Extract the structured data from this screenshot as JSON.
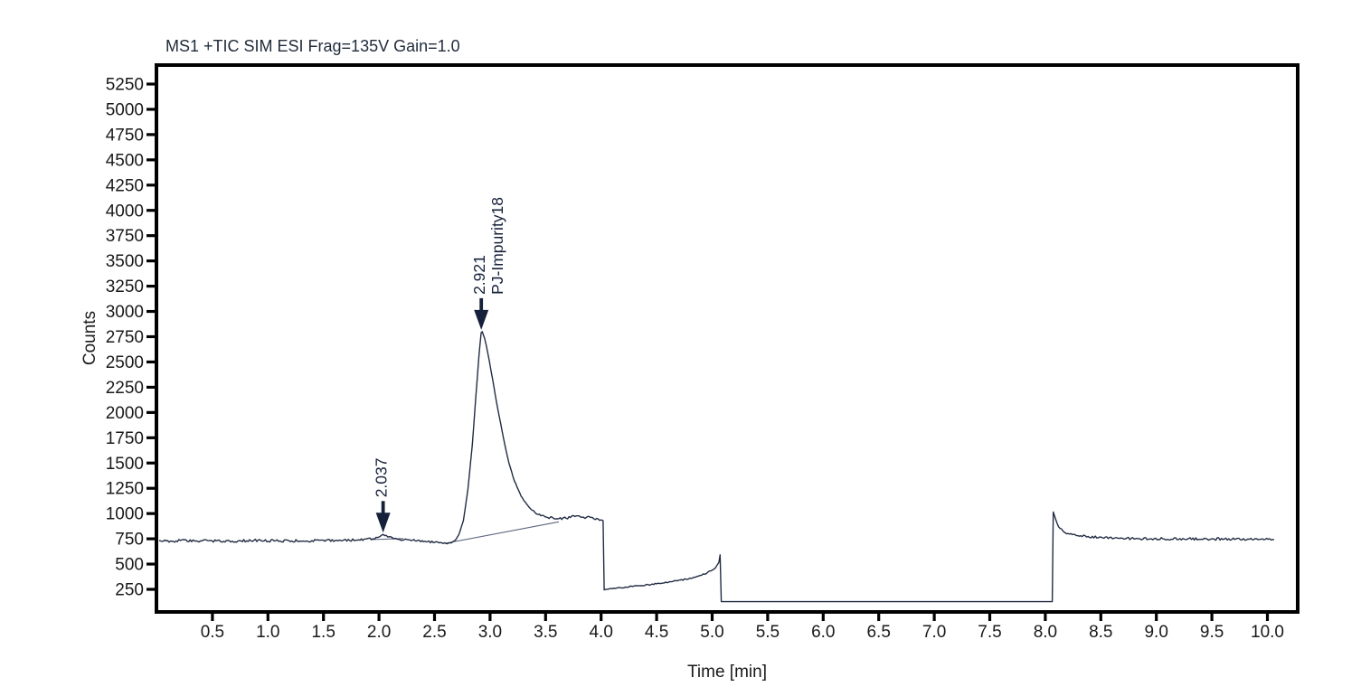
{
  "chart_data": {
    "type": "line",
    "title": "MS1 +TIC SIM ESI Frag=135V Gain=1.0",
    "xlabel": "Time [min]",
    "ylabel": "Counts",
    "xlim": [
      0,
      10.27
    ],
    "ylim": [
      100,
      5500
    ],
    "x_ticks": [
      "0.5",
      "1.0",
      "1.5",
      "2.0",
      "2.5",
      "3.0",
      "3.5",
      "4.0",
      "4.5",
      "5.0",
      "5.5",
      "6.0",
      "6.5",
      "7.0",
      "7.5",
      "8.0",
      "8.5",
      "9.0",
      "9.5",
      "10.0"
    ],
    "y_ticks": [
      250,
      500,
      750,
      1000,
      1250,
      1500,
      1750,
      2000,
      2250,
      2500,
      2750,
      3000,
      3250,
      3500,
      3750,
      4000,
      4250,
      4500,
      4750,
      5000,
      5250
    ],
    "grid": "off",
    "legend": "none",
    "peaks": [
      {
        "rt_label": "2.037",
        "rt": 2.037,
        "apex_counts": 793,
        "compound": ""
      },
      {
        "rt_label": "2.921",
        "rt": 2.921,
        "apex_counts": 2800,
        "compound": "PJ-Impurity18"
      }
    ],
    "integration_baselines": [
      {
        "t1": 1.92,
        "v1": 742,
        "t2": 2.22,
        "v2": 753
      },
      {
        "t1": 2.6,
        "v1": 706,
        "t2": 3.62,
        "v2": 918
      }
    ],
    "trace_keypoints": [
      [
        0.02,
        728,
        13
      ],
      [
        0.3,
        731,
        13
      ],
      [
        0.6,
        727,
        13
      ],
      [
        0.9,
        733,
        13
      ],
      [
        1.2,
        728,
        13
      ],
      [
        1.5,
        733,
        12
      ],
      [
        1.75,
        737,
        12
      ],
      [
        1.92,
        748,
        10
      ],
      [
        2.0,
        762,
        8
      ],
      [
        2.037,
        793,
        5
      ],
      [
        2.08,
        772,
        8
      ],
      [
        2.15,
        748,
        9
      ],
      [
        2.3,
        735,
        10
      ],
      [
        2.45,
        722,
        10
      ],
      [
        2.58,
        706,
        8
      ],
      [
        2.64,
        708,
        6
      ],
      [
        2.68,
        725,
        5
      ],
      [
        2.72,
        790,
        4
      ],
      [
        2.76,
        930,
        4
      ],
      [
        2.8,
        1230,
        4
      ],
      [
        2.84,
        1680,
        4
      ],
      [
        2.87,
        2120,
        4
      ],
      [
        2.9,
        2560,
        4
      ],
      [
        2.92,
        2790,
        0
      ],
      [
        2.93,
        2800,
        0
      ],
      [
        2.95,
        2740,
        4
      ],
      [
        2.98,
        2590,
        5
      ],
      [
        3.02,
        2350,
        5
      ],
      [
        3.07,
        2030,
        6
      ],
      [
        3.12,
        1750,
        6
      ],
      [
        3.17,
        1500,
        6
      ],
      [
        3.22,
        1320,
        6
      ],
      [
        3.28,
        1170,
        6
      ],
      [
        3.34,
        1075,
        7
      ],
      [
        3.42,
        1000,
        8
      ],
      [
        3.52,
        960,
        10
      ],
      [
        3.62,
        950,
        13
      ],
      [
        3.75,
        968,
        13
      ],
      [
        3.88,
        962,
        13
      ],
      [
        4.0,
        938,
        8
      ],
      [
        4.018,
        930,
        0
      ],
      [
        4.028,
        245,
        0
      ],
      [
        4.1,
        258,
        6
      ],
      [
        4.3,
        280,
        6
      ],
      [
        4.5,
        305,
        6
      ],
      [
        4.7,
        338,
        7
      ],
      [
        4.85,
        372,
        7
      ],
      [
        4.96,
        415,
        7
      ],
      [
        5.03,
        462,
        5
      ],
      [
        5.06,
        515,
        3
      ],
      [
        5.072,
        592,
        0
      ],
      [
        5.082,
        128,
        0
      ],
      [
        8.063,
        128,
        0
      ],
      [
        8.072,
        1015,
        0
      ],
      [
        8.095,
        935,
        4
      ],
      [
        8.12,
        862,
        7
      ],
      [
        8.18,
        812,
        9
      ],
      [
        8.28,
        782,
        11
      ],
      [
        8.45,
        765,
        12
      ],
      [
        8.8,
        752,
        12
      ],
      [
        9.2,
        750,
        12
      ],
      [
        9.6,
        748,
        12
      ],
      [
        10.06,
        745,
        12
      ]
    ],
    "noise_seed": 1337,
    "colors": {
      "trace": "#222c44",
      "axis": "#000000",
      "tick_label": "#1a1a1a",
      "title": "#1f2a3a",
      "annotation": "#15203a",
      "integration_line": "#5d6880",
      "background": "#ffffff"
    }
  }
}
